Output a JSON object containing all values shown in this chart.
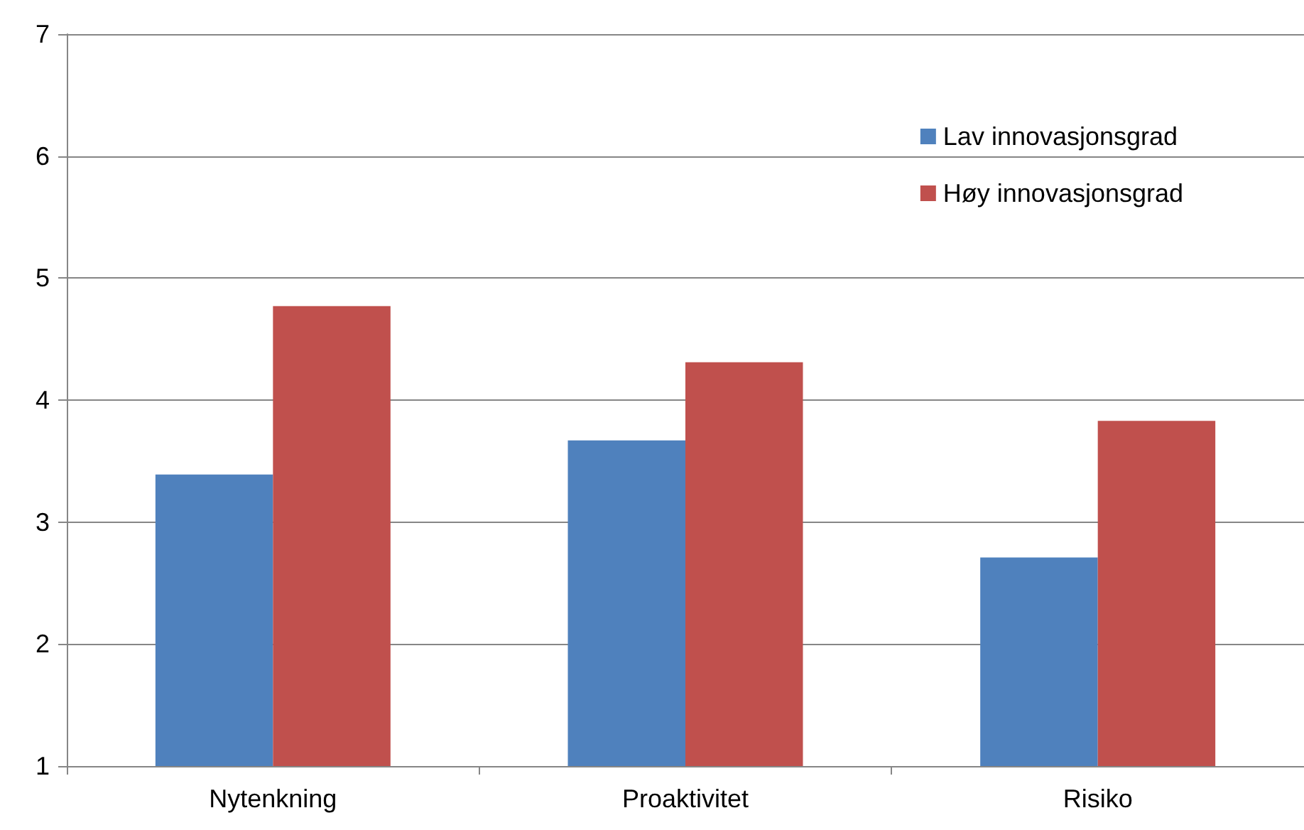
{
  "chart_data": {
    "type": "bar",
    "categories": [
      "Nytenkning",
      "Proaktivitet",
      "Risiko"
    ],
    "series": [
      {
        "name": "Lav innovasjonsgrad",
        "color": "#4f81bd",
        "values": [
          3.39,
          3.67,
          2.71
        ]
      },
      {
        "name": "Høy innovasjonsgrad",
        "color": "#c0504d",
        "values": [
          4.77,
          4.31,
          3.83
        ]
      }
    ],
    "ylim": [
      1,
      7
    ],
    "yticks": [
      1,
      2,
      3,
      4,
      5,
      6,
      7
    ],
    "grid": "y",
    "legend": "top right"
  }
}
